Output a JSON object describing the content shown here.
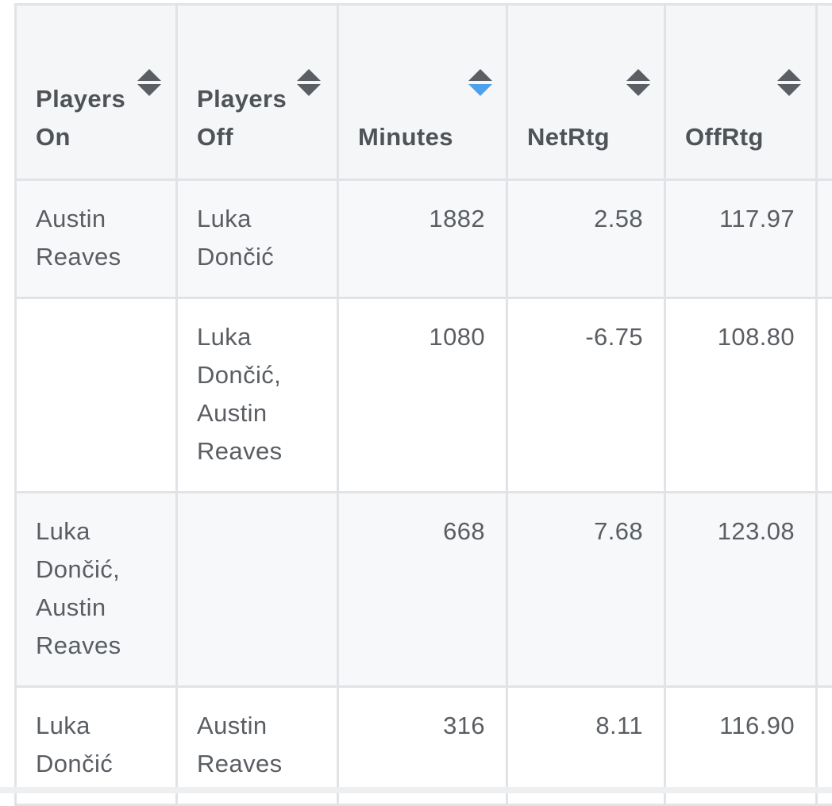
{
  "table": {
    "headers": [
      {
        "label": "Players On",
        "sort": "none"
      },
      {
        "label": "Players Off",
        "sort": "none"
      },
      {
        "label": "Minutes",
        "sort": "descending"
      },
      {
        "label": "NetRtg",
        "sort": "none"
      },
      {
        "label": "OffRtg",
        "sort": "none"
      }
    ],
    "rows": [
      {
        "players_on": "Austin Reaves",
        "players_off": "Luka Dončić",
        "minutes": "1882",
        "netrtg": "2.58",
        "offrtg": "117.97"
      },
      {
        "players_on": "",
        "players_off": "Luka Dončić, Austin Reaves",
        "minutes": "1080",
        "netrtg": "-6.75",
        "offrtg": "108.80"
      },
      {
        "players_on": "Luka Dončić, Austin Reaves",
        "players_off": "",
        "minutes": "668",
        "netrtg": "7.68",
        "offrtg": "123.08"
      },
      {
        "players_on": "Luka Dončić",
        "players_off": "Austin Reaves",
        "minutes": "316",
        "netrtg": "8.11",
        "offrtg": "116.90"
      }
    ]
  },
  "colors": {
    "header_bg": "#f5f6f8",
    "border": "#e1e3e7",
    "sort_active": "#4da1ea",
    "sort_inactive": "#5b5f64"
  },
  "icons": {
    "sort": "sort-updown-icon"
  }
}
